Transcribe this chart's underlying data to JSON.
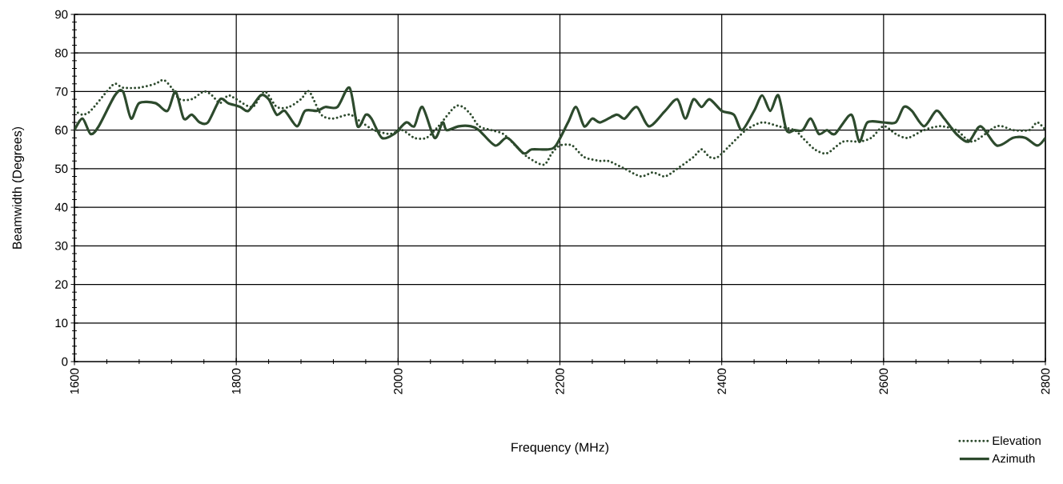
{
  "chart_data": {
    "type": "line",
    "xlabel": "Frequency (MHz)",
    "ylabel": "Beamwidth (Degrees)",
    "xlim": [
      1600,
      2800
    ],
    "ylim": [
      0,
      90
    ],
    "xticks": [
      1600,
      1800,
      2000,
      2200,
      2400,
      2600,
      2800
    ],
    "yticks": [
      0,
      10,
      20,
      30,
      40,
      50,
      60,
      70,
      80,
      90
    ],
    "grid": true,
    "legend": "bottom right",
    "marker": "none",
    "series": [
      {
        "name": "Elevation",
        "color": "#2d4a2d",
        "line_style": "dotted",
        "x": [
          1600,
          1610,
          1620,
          1640,
          1650,
          1660,
          1680,
          1700,
          1710,
          1720,
          1730,
          1745,
          1760,
          1770,
          1780,
          1790,
          1800,
          1820,
          1835,
          1850,
          1865,
          1880,
          1890,
          1905,
          1920,
          1940,
          1955,
          1970,
          1990,
          2005,
          2020,
          2035,
          2050,
          2070,
          2080,
          2090,
          2100,
          2115,
          2130,
          2145,
          2160,
          2180,
          2190,
          2200,
          2215,
          2230,
          2250,
          2260,
          2280,
          2300,
          2315,
          2330,
          2345,
          2365,
          2375,
          2385,
          2395,
          2410,
          2430,
          2450,
          2470,
          2490,
          2500,
          2515,
          2530,
          2550,
          2570,
          2585,
          2600,
          2615,
          2630,
          2650,
          2670,
          2690,
          2710,
          2740,
          2760,
          2780,
          2790,
          2800
        ],
        "values": [
          65,
          64,
          65,
          70,
          72,
          71,
          71,
          72,
          73,
          71,
          68,
          68,
          70,
          69,
          67,
          69,
          68,
          66,
          70,
          66,
          66,
          68,
          70,
          64,
          63,
          64,
          62,
          60,
          59,
          60,
          58,
          58,
          61,
          66,
          66,
          64,
          61,
          60,
          59,
          56,
          53,
          51,
          54,
          56,
          56,
          53,
          52,
          52,
          50,
          48,
          49,
          48,
          50,
          53,
          55,
          53,
          53,
          56,
          60,
          62,
          61,
          60,
          58,
          55,
          54,
          57,
          57,
          58,
          61,
          59,
          58,
          60,
          61,
          60,
          57,
          61,
          60,
          60,
          62,
          60
        ]
      },
      {
        "name": "Azimuth",
        "color": "#2d4a2d",
        "line_style": "solid",
        "x": [
          1600,
          1610,
          1620,
          1630,
          1650,
          1660,
          1670,
          1680,
          1700,
          1715,
          1725,
          1735,
          1745,
          1755,
          1765,
          1780,
          1790,
          1805,
          1815,
          1830,
          1840,
          1850,
          1860,
          1875,
          1885,
          1900,
          1910,
          1925,
          1940,
          1950,
          1960,
          1967,
          1980,
          1995,
          2010,
          2020,
          2030,
          2045,
          2055,
          2060,
          2075,
          2090,
          2100,
          2120,
          2135,
          2155,
          2165,
          2185,
          2195,
          2210,
          2220,
          2230,
          2240,
          2250,
          2270,
          2280,
          2295,
          2310,
          2330,
          2345,
          2355,
          2365,
          2375,
          2385,
          2400,
          2415,
          2425,
          2440,
          2450,
          2460,
          2470,
          2480,
          2490,
          2500,
          2510,
          2520,
          2530,
          2540,
          2560,
          2570,
          2580,
          2600,
          2615,
          2625,
          2635,
          2650,
          2665,
          2675,
          2690,
          2705,
          2720,
          2740,
          2760,
          2775,
          2790,
          2800
        ],
        "values": [
          60,
          63,
          59,
          61,
          69,
          70,
          63,
          67,
          67,
          65,
          70,
          63,
          64,
          62,
          62,
          68,
          67,
          66,
          65,
          69,
          68,
          64,
          65,
          61,
          65,
          65,
          66,
          66,
          71,
          61,
          64,
          63,
          58,
          59,
          62,
          61,
          66,
          58,
          62,
          60,
          61,
          61,
          60,
          56,
          58,
          54,
          55,
          55,
          56,
          62,
          66,
          61,
          63,
          62,
          64,
          63,
          66,
          61,
          65,
          68,
          63,
          68,
          66,
          68,
          65,
          64,
          60,
          65,
          69,
          65,
          69,
          60,
          60,
          60,
          63,
          59,
          60,
          59,
          64,
          57,
          62,
          62,
          62,
          66,
          65,
          61,
          65,
          63,
          59,
          57,
          61,
          56,
          58,
          58,
          56,
          58
        ]
      }
    ]
  }
}
